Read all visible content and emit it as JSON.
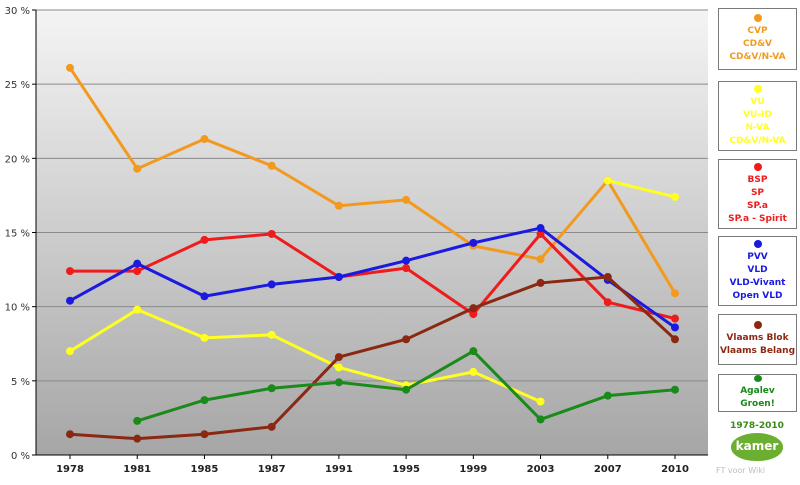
{
  "chart_data": {
    "type": "line",
    "x": [
      "1978",
      "1981",
      "1985",
      "1987",
      "1991",
      "1995",
      "1999",
      "2003",
      "2007",
      "2010"
    ],
    "yticks": [
      "0 %",
      "5 %",
      "10 %",
      "15 %",
      "20 %",
      "25 %",
      "30 %"
    ],
    "ylim": [
      0,
      30
    ],
    "grid": true,
    "legend_position": "right",
    "series": [
      {
        "key": "cvp",
        "color": "#f39a1e",
        "labels": [
          "CVP",
          "CD&V",
          "CD&V/N-VA"
        ],
        "values": [
          26.1,
          19.3,
          21.3,
          19.5,
          16.8,
          17.2,
          14.1,
          13.2,
          18.5,
          10.9
        ]
      },
      {
        "key": "vu",
        "color": "#ffff22",
        "labels": [
          "VU",
          "VU-ID",
          "N-VA",
          "CD&V/N-VA"
        ],
        "values": [
          7.0,
          9.8,
          7.9,
          8.1,
          5.9,
          4.7,
          5.6,
          3.6,
          null,
          null
        ],
        "extra_segment": {
          "x": [
            "2007",
            "2010"
          ],
          "values": [
            18.5,
            17.4
          ]
        }
      },
      {
        "key": "bsp",
        "color": "#ee1c1c",
        "labels": [
          "BSP",
          "SP",
          "SP.a",
          "SP.a - Spirit"
        ],
        "values": [
          12.4,
          12.4,
          14.5,
          14.9,
          12.0,
          12.6,
          9.5,
          14.9,
          10.3,
          9.2
        ]
      },
      {
        "key": "pvv",
        "color": "#1a1ae0",
        "labels": [
          "PVV",
          "VLD",
          "VLD-Vivant",
          "Open VLD"
        ],
        "values": [
          10.4,
          12.9,
          10.7,
          11.5,
          12.0,
          13.1,
          14.3,
          15.3,
          11.8,
          8.6
        ]
      },
      {
        "key": "vb",
        "color": "#8b2812",
        "labels": [
          "Vlaams Blok",
          "Vlaams Belang"
        ],
        "values": [
          1.4,
          1.1,
          1.4,
          1.9,
          6.6,
          7.8,
          9.9,
          11.6,
          12.0,
          7.8
        ]
      },
      {
        "key": "agalev",
        "color": "#1a8a1a",
        "labels": [
          "Agalev",
          "Groen!"
        ],
        "values": [
          null,
          2.3,
          3.7,
          4.5,
          4.9,
          4.4,
          7.0,
          2.4,
          4.0,
          4.4
        ]
      }
    ]
  },
  "badge": {
    "years": "1978-2010",
    "logo_text": "kamer"
  },
  "credit": "FT voor Wiki"
}
